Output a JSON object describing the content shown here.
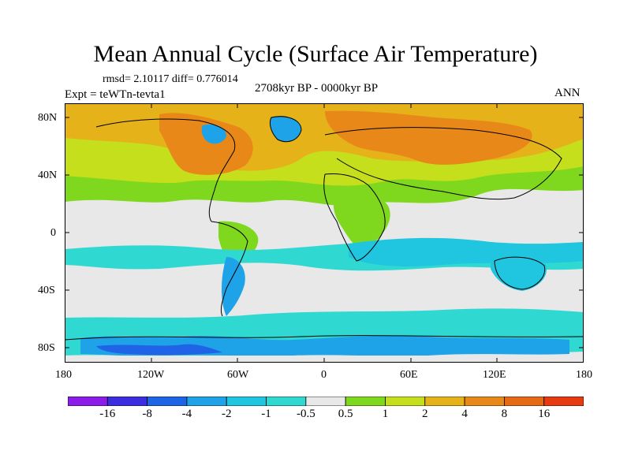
{
  "title": "Mean Annual Cycle (Surface Air Temperature)",
  "stats": "rmsd= 2.10117  diff= 0.776014",
  "experiment": "Expt = teWTn-tevta1",
  "period": "2708kyr BP - 0000kyr BP",
  "season": "ANN",
  "axes": {
    "lat_labels": [
      "80N",
      "40N",
      "0",
      "40S",
      "80S"
    ],
    "lon_labels": [
      "180",
      "120W",
      "60W",
      "0",
      "60E",
      "120E",
      "180"
    ]
  },
  "legend": {
    "labels": [
      "-16",
      "-8",
      "-4",
      "-2",
      "-1",
      "-0.5",
      "0.5",
      "1",
      "2",
      "4",
      "8",
      "16"
    ],
    "colors": [
      "#8c1ce8",
      "#3a2ee0",
      "#1f64e6",
      "#1ea3e8",
      "#20c6e0",
      "#2fd9d2",
      "#e8e8e8",
      "#80d81e",
      "#c6df1c",
      "#e6b21a",
      "#e88818",
      "#e66a15",
      "#e63a12"
    ]
  },
  "map_colors": {
    "land_outline": "#000000",
    "neutral": "#e8e8e8",
    "cyan": "#20c6e0",
    "light_cyan": "#2fd9d2",
    "blue": "#1ea3e8",
    "deep_blue": "#1f64e6",
    "green": "#80d81e",
    "yellow_green": "#c6df1c",
    "gold": "#e6b21a",
    "orange": "#e88818"
  }
}
